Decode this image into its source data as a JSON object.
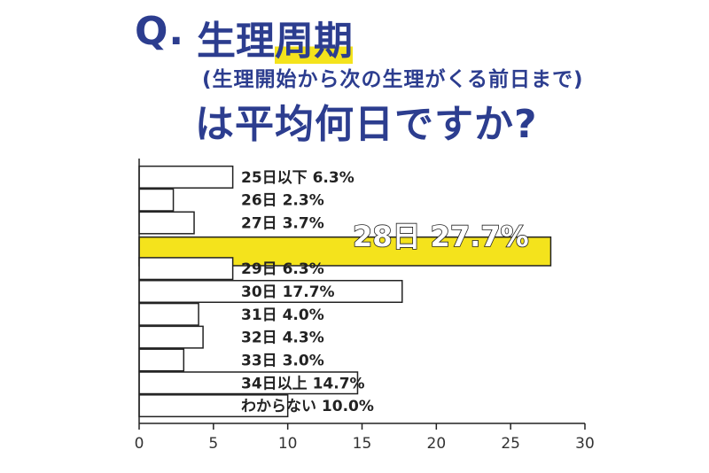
{
  "header": {
    "q_mark": "Q.",
    "title_part1": "生理",
    "title_part2": "周期",
    "subtitle": "(生理開始から次の生理がくる前日まで)",
    "title_line3": "は平均何日ですか?"
  },
  "chart_data": {
    "type": "bar",
    "orientation": "horizontal",
    "categories": [
      "25日以下",
      "26日",
      "27日",
      "28日",
      "29日",
      "30日",
      "31日",
      "32日",
      "33日",
      "34日以上",
      "わからない"
    ],
    "values": [
      6.3,
      2.3,
      3.7,
      27.7,
      6.3,
      17.7,
      4.0,
      4.3,
      3.0,
      14.7,
      10.0
    ],
    "value_labels": [
      "6.3%",
      "2.3%",
      "3.7%",
      "27.7%",
      "6.3%",
      "17.7%",
      "4.0%",
      "4.3%",
      "3.0%",
      "14.7%",
      "10.0%"
    ],
    "highlight_index": 3,
    "xlim": [
      0,
      30
    ],
    "xticks": [
      "0",
      "5",
      "10",
      "15",
      "20",
      "25",
      "30"
    ],
    "colors": {
      "bar": "#ffffff",
      "highlight": "#f4e31c",
      "outline": "#222222"
    }
  }
}
